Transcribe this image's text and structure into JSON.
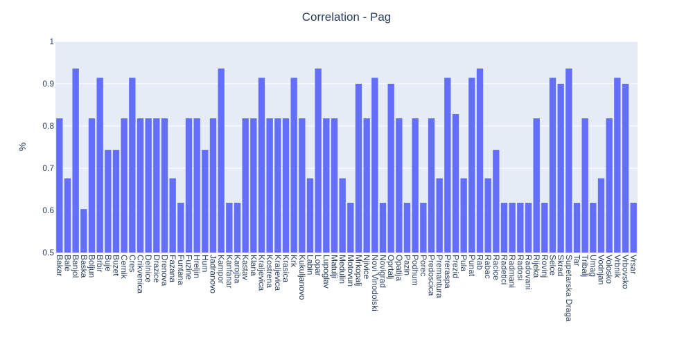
{
  "colors": {
    "background": "#ffffff",
    "plot_background": "#e5ecf6",
    "gridline": "#ffffff",
    "bar": "#636efa",
    "text": "#2a3f5f"
  },
  "chart_data": {
    "type": "bar",
    "title": "Correlation - Pag",
    "xlabel": "",
    "ylabel": "%",
    "ylim": [
      0.5,
      1
    ],
    "yticks": [
      0.5,
      0.6,
      0.7,
      0.8,
      0.9,
      1
    ],
    "ytick_labels": [
      "0.5",
      "0.6",
      "0.7",
      "0.8",
      "0.9",
      "1"
    ],
    "grid": true,
    "categories": [
      "Bakar",
      "Bale",
      "Banjol",
      "Baska",
      "Boljun",
      "Brbir",
      "Buje",
      "Buzet",
      "Cernik",
      "Cres",
      "Crikvenica",
      "Delnice",
      "Drazice",
      "Drenova",
      "Fazana",
      "Funtana",
      "Fuzine",
      "Hreljin",
      "Hum",
      "Jadranovo",
      "Kampor",
      "Kanfanar",
      "Karojba",
      "Kastav",
      "Klana",
      "Kraljevica",
      "Kostrena",
      "Kraljevica",
      "Krasica",
      "Krk",
      "Kukuljanovo",
      "Labin",
      "Lopar",
      "Lupoglav",
      "Matulji",
      "Medulin",
      "Motovun",
      "Mrkopalj",
      "Njivice",
      "Novi Vinodolski",
      "Novigrad",
      "Oprtalj",
      "Opatija",
      "Pazin",
      "Podhum",
      "Porec",
      "Predoscica",
      "Premantura",
      "Preraspa",
      "Prezid",
      "Pula",
      "Punat",
      "Rab",
      "Rabac",
      "Racice",
      "Radetici",
      "Radmani",
      "Radosi",
      "Radovani",
      "Rijeka",
      "Rovinj",
      "Selce",
      "Skrad",
      "Supetarska Draga",
      "Tar",
      "Tribalj",
      "Umag",
      "Vodnjan",
      "Volosko",
      "Vrbnik",
      "Vrbovsko",
      "Vrsar"
    ],
    "values": [
      0.818,
      0.676,
      0.936,
      0.603,
      0.818,
      0.914,
      0.743,
      0.743,
      0.818,
      0.914,
      0.818,
      0.818,
      0.818,
      0.818,
      0.676,
      0.618,
      0.818,
      0.818,
      0.743,
      0.818,
      0.936,
      0.618,
      0.618,
      0.818,
      0.818,
      0.914,
      0.818,
      0.818,
      0.818,
      0.914,
      0.818,
      0.676,
      0.936,
      0.818,
      0.818,
      0.676,
      0.618,
      0.9,
      0.818,
      0.914,
      0.618,
      0.9,
      0.818,
      0.618,
      0.818,
      0.618,
      0.818,
      0.676,
      0.914,
      0.828,
      0.676,
      0.914,
      0.936,
      0.676,
      0.743,
      0.618,
      0.618,
      0.618,
      0.618,
      0.818,
      0.618,
      0.914,
      0.9,
      0.936,
      0.618,
      0.818,
      0.618,
      0.676,
      0.818,
      0.914,
      0.9,
      0.618
    ]
  }
}
